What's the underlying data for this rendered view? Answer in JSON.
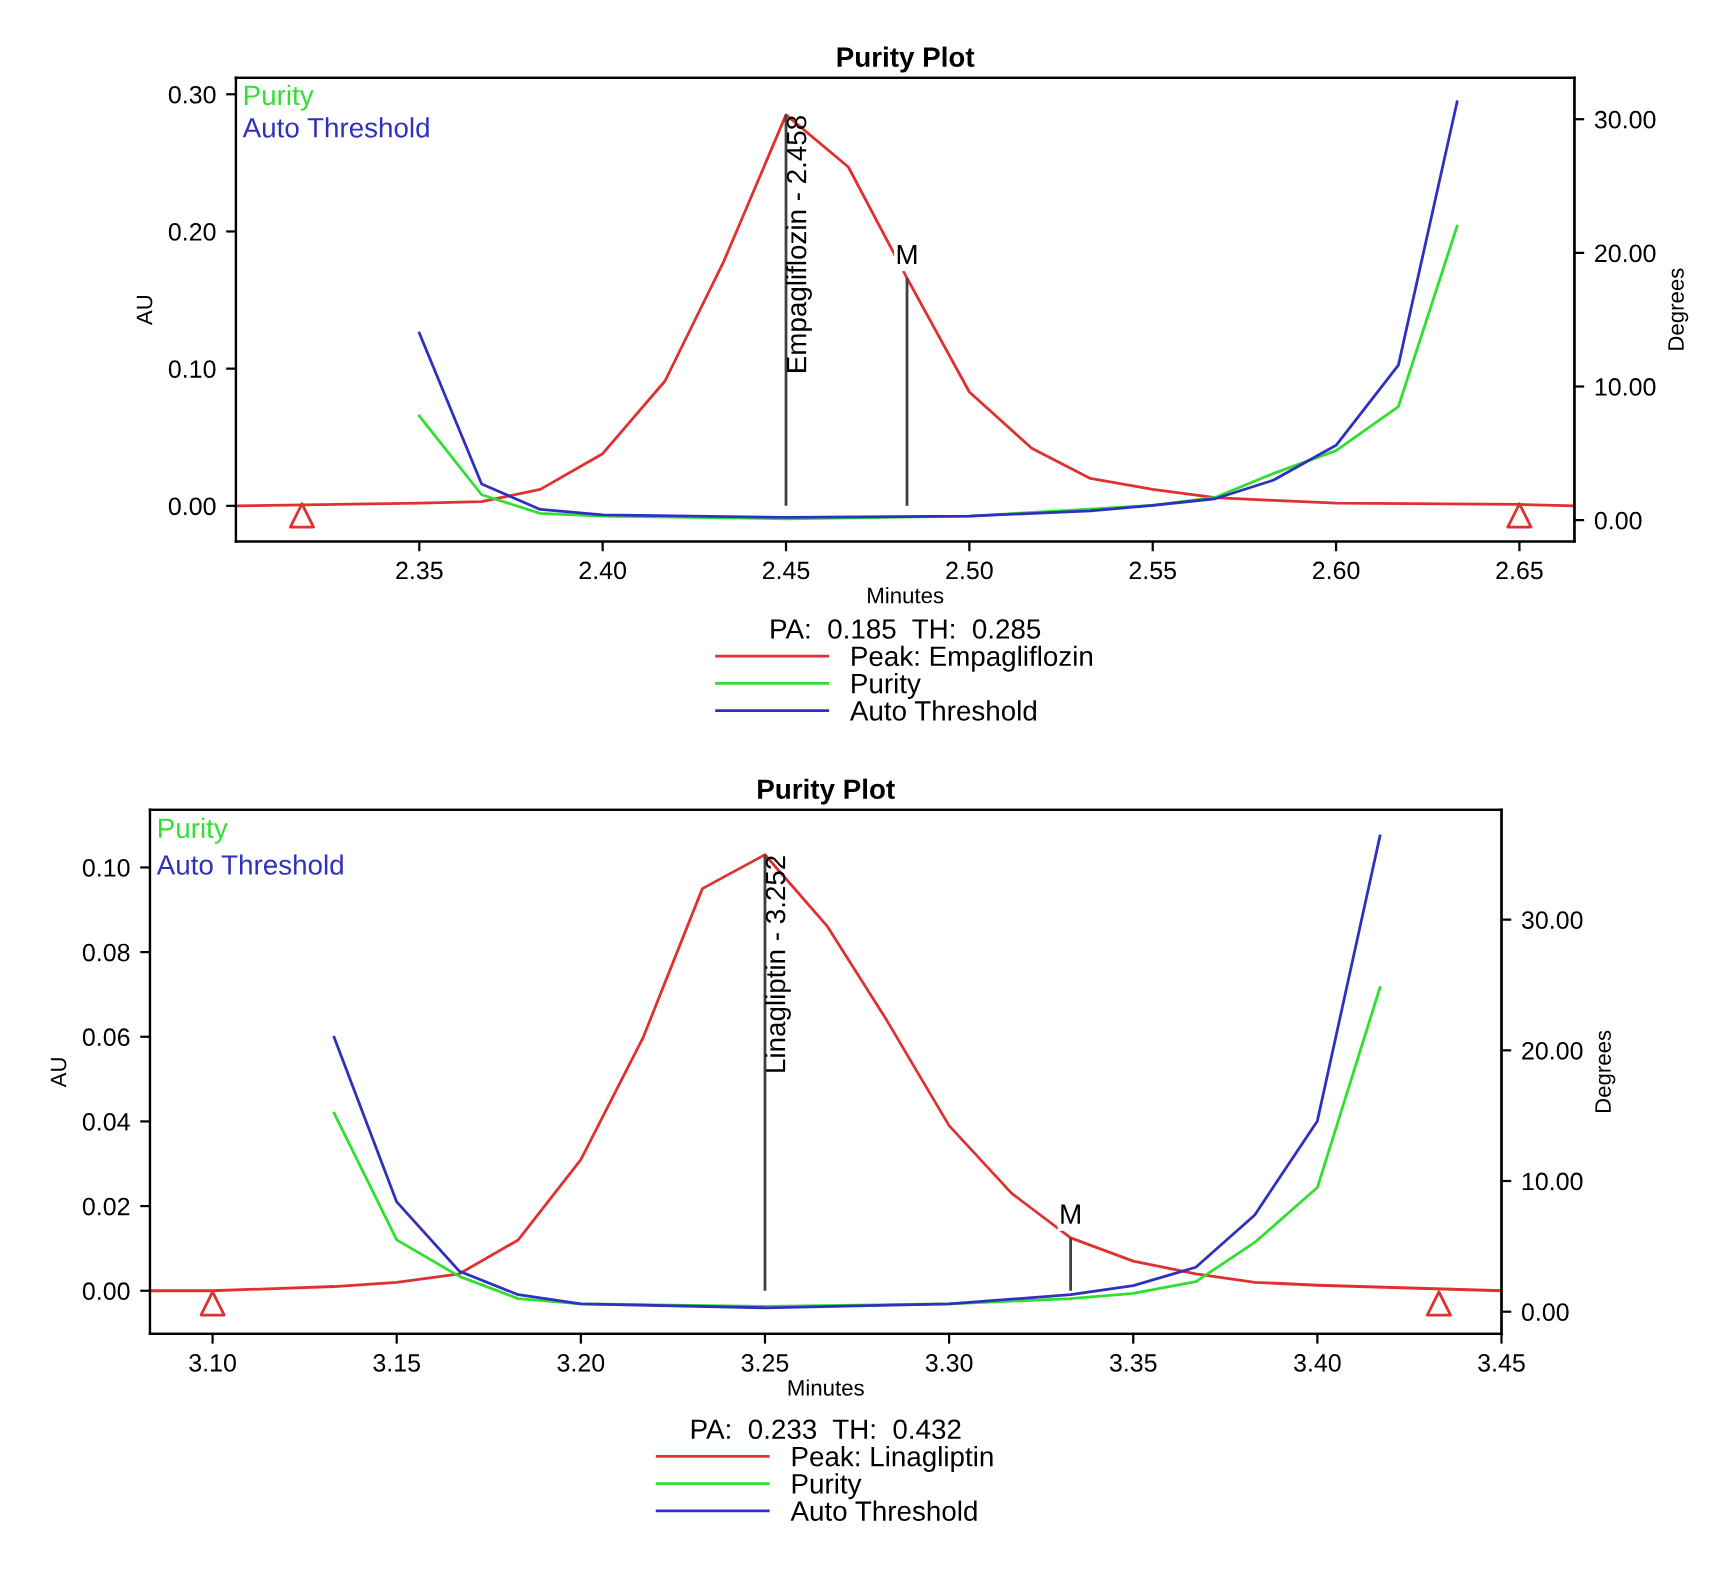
{
  "chart_data": [
    {
      "type": "line",
      "title": "Purity Plot",
      "xlabel": "Minutes",
      "ylabel": "AU",
      "y2label": "Degrees",
      "legend_title": "PA:  0.185  TH:  0.285",
      "legend": "bottom",
      "xlim": [
        2.3,
        2.665
      ],
      "xticks": [
        {
          "value": 2.35,
          "label": "2.35"
        },
        {
          "value": 2.4,
          "label": "2.40"
        },
        {
          "value": 2.45,
          "label": "2.45"
        },
        {
          "value": 2.5,
          "label": "2.50"
        },
        {
          "value": 2.55,
          "label": "2.55"
        },
        {
          "value": 2.6,
          "label": "2.60"
        },
        {
          "value": 2.65,
          "label": "2.65"
        }
      ],
      "ylim": [
        -0.026,
        0.312
      ],
      "yticks": [
        {
          "value": 0,
          "label": "0.00"
        },
        {
          "value": 0.1,
          "label": "0.10"
        },
        {
          "value": 0.2,
          "label": "0.20"
        },
        {
          "value": 0.3,
          "label": "0.30"
        }
      ],
      "y2lim": [
        -1.6,
        33.1
      ],
      "y2ticks": [
        {
          "value": 0,
          "label": "0.00"
        },
        {
          "value": 10,
          "label": "10.00"
        },
        {
          "value": 20,
          "label": "20.00"
        },
        {
          "value": 30,
          "label": "30.00"
        }
      ],
      "series": [
        {
          "name": "Peak: Empagliflozin",
          "color": "#e03030",
          "x": [
            2.3,
            2.35,
            2.367,
            2.383,
            2.4,
            2.417,
            2.433,
            2.45,
            2.467,
            2.483,
            2.5,
            2.517,
            2.533,
            2.55,
            2.567,
            2.583,
            2.6,
            2.65,
            2.665
          ],
          "values": [
            0,
            0.002,
            0.003,
            0.012,
            0.038,
            0.091,
            0.178,
            0.285,
            0.247,
            0.166,
            0.083,
            0.042,
            0.02,
            0.012,
            0.006,
            0.004,
            0.002,
            0.001,
            0
          ]
        },
        {
          "name": "Purity",
          "color": "#30e030",
          "axis": "y2",
          "x": [
            2.35,
            2.367,
            2.383,
            2.4,
            2.45,
            2.5,
            2.55,
            2.567,
            2.583,
            2.6,
            2.617,
            2.633
          ],
          "values": [
            7.8,
            1.9,
            0.5,
            0.3,
            0.1,
            0.3,
            1.1,
            1.7,
            3.5,
            5.2,
            8.5,
            22.0
          ]
        },
        {
          "name": "Auto Threshold",
          "color": "#3030c0",
          "axis": "y2",
          "x": [
            2.35,
            2.367,
            2.383,
            2.4,
            2.45,
            2.5,
            2.533,
            2.55,
            2.567,
            2.583,
            2.6,
            2.617,
            2.633
          ],
          "values": [
            14.0,
            2.7,
            0.8,
            0.4,
            0.2,
            0.3,
            0.7,
            1.1,
            1.6,
            3.0,
            5.6,
            11.6,
            31.3
          ]
        },
        {
          "type": "scatter",
          "marker": "triangle",
          "color": "#e03030",
          "x": [
            2.318,
            2.65
          ],
          "values": [
            -0.007,
            -0.007
          ]
        }
      ],
      "annotations": [
        {
          "text": "Empagliflozin - 2.458",
          "x": 2.45,
          "y": 0.285
        },
        {
          "text": "M",
          "x": 2.483,
          "y": 0.166
        }
      ]
    },
    {
      "type": "line",
      "title": "Purity Plot",
      "xlabel": "Minutes",
      "ylabel": "AU",
      "y2label": "Degrees",
      "legend_title": "PA:  0.233  TH:  0.432",
      "legend": "bottom",
      "xlim": [
        3.083,
        3.45
      ],
      "xticks": [
        {
          "value": 3.1,
          "label": "3.10"
        },
        {
          "value": 3.15,
          "label": "3.15"
        },
        {
          "value": 3.2,
          "label": "3.20"
        },
        {
          "value": 3.25,
          "label": "3.25"
        },
        {
          "value": 3.3,
          "label": "3.30"
        },
        {
          "value": 3.35,
          "label": "3.35"
        },
        {
          "value": 3.4,
          "label": "3.40"
        },
        {
          "value": 3.45,
          "label": "3.45"
        }
      ],
      "ylim": [
        -0.0102,
        0.1136
      ],
      "yticks": [
        {
          "value": 0,
          "label": "0.00"
        },
        {
          "value": 0.02,
          "label": "0.02"
        },
        {
          "value": 0.04,
          "label": "0.04"
        },
        {
          "value": 0.06,
          "label": "0.06"
        },
        {
          "value": 0.08,
          "label": "0.08"
        },
        {
          "value": 0.1,
          "label": "0.10"
        }
      ],
      "y2lim": [
        -1.7,
        38.4
      ],
      "y2ticks": [
        {
          "value": 0,
          "label": "0.00"
        },
        {
          "value": 10,
          "label": "10.00"
        },
        {
          "value": 20,
          "label": "20.00"
        },
        {
          "value": 30,
          "label": "30.00"
        }
      ],
      "series": [
        {
          "name": "Peak: Linagliptin",
          "color": "#e03030",
          "x": [
            3.083,
            3.1,
            3.133,
            3.15,
            3.167,
            3.183,
            3.2,
            3.217,
            3.233,
            3.25,
            3.267,
            3.283,
            3.3,
            3.317,
            3.333,
            3.35,
            3.367,
            3.383,
            3.4,
            3.45
          ],
          "values": [
            0,
            0,
            0.001,
            0.002,
            0.004,
            0.012,
            0.031,
            0.06,
            0.095,
            0.103,
            0.086,
            0.064,
            0.039,
            0.023,
            0.0125,
            0.007,
            0.004,
            0.002,
            0.0013,
            0
          ]
        },
        {
          "name": "Purity",
          "color": "#30e030",
          "axis": "y2",
          "x": [
            3.133,
            3.15,
            3.167,
            3.183,
            3.2,
            3.25,
            3.3,
            3.333,
            3.35,
            3.367,
            3.383,
            3.4,
            3.417
          ],
          "values": [
            15.2,
            5.5,
            2.7,
            1.0,
            0.6,
            0.4,
            0.6,
            1.0,
            1.4,
            2.3,
            5.3,
            9.5,
            24.8
          ]
        },
        {
          "name": "Auto Threshold",
          "color": "#3030c0",
          "axis": "y2",
          "x": [
            3.133,
            3.15,
            3.167,
            3.183,
            3.2,
            3.25,
            3.3,
            3.333,
            3.35,
            3.367,
            3.383,
            3.4,
            3.417
          ],
          "values": [
            21.0,
            8.4,
            3.1,
            1.3,
            0.6,
            0.3,
            0.6,
            1.3,
            2.0,
            3.4,
            7.4,
            14.6,
            36.4
          ]
        },
        {
          "type": "scatter",
          "marker": "triangle",
          "color": "#e03030",
          "x": [
            3.1,
            3.433
          ],
          "values": [
            -0.003,
            -0.003
          ]
        }
      ],
      "annotations": [
        {
          "text": "Linagliptin - 3.252",
          "x": 3.25,
          "y": 0.103
        },
        {
          "text": "M",
          "x": 3.333,
          "y": 0.0125
        }
      ]
    }
  ]
}
